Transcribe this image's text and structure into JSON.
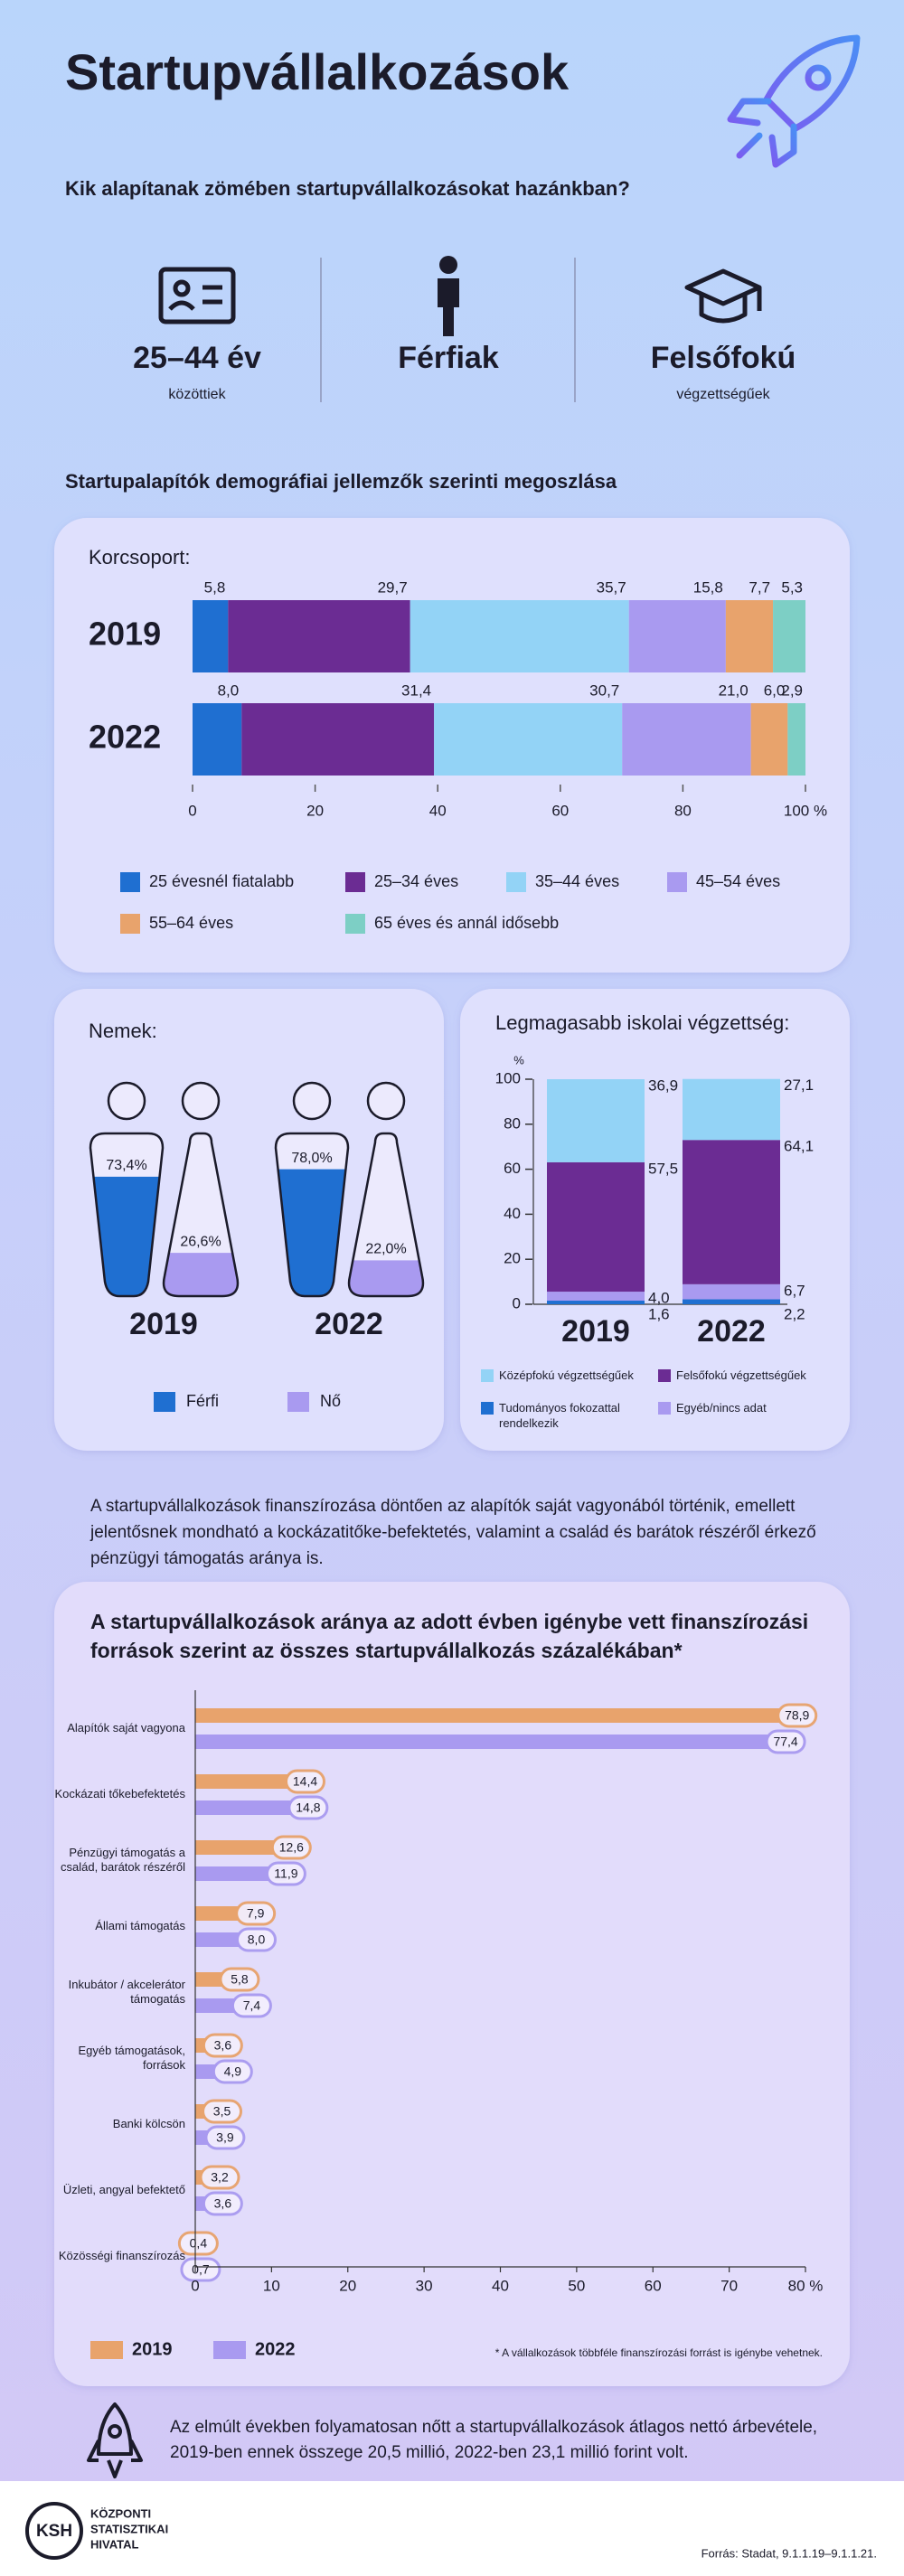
{
  "header": {
    "title": "Startupvállalkozások",
    "question": "Kik alapítanak zömében startupvállalkozásokat hazánkban?"
  },
  "profile": [
    {
      "main": "25–44 év",
      "sub": "közöttiek"
    },
    {
      "main": "Férfiak"
    },
    {
      "main": "Felsőfokú",
      "sub": "végzettségűek"
    }
  ],
  "section_title": "Startupalapítók demográfiai jellemzők szerinti megoszlása",
  "chart_data": [
    {
      "type": "bar",
      "orientation": "horizontal",
      "stacked": true,
      "title": "Korcsoport:",
      "categories": [
        "2019",
        "2022"
      ],
      "series": [
        {
          "name": "25 évesnél fiatalabb",
          "color": "#1f6fd1",
          "values": [
            5.8,
            8.0
          ],
          "value_labels": [
            "5,8",
            "8,0"
          ]
        },
        {
          "name": "25–34 éves",
          "color": "#6b2c93",
          "values": [
            29.7,
            31.4
          ],
          "value_labels": [
            "29,7",
            "31,4"
          ]
        },
        {
          "name": "35–44 éves",
          "color": "#93d3f6",
          "values": [
            35.7,
            30.7
          ],
          "value_labels": [
            "35,7",
            "30,7"
          ]
        },
        {
          "name": "45–54 éves",
          "color": "#a99af0",
          "values": [
            15.8,
            21.0
          ],
          "value_labels": [
            "15,8",
            "21,0"
          ]
        },
        {
          "name": "55–64 éves",
          "color": "#e8a36c",
          "values": [
            7.7,
            6.0
          ],
          "value_labels": [
            "7,7",
            "6,0"
          ]
        },
        {
          "name": "65 éves és annál idősebb",
          "color": "#7dcfc5",
          "values": [
            5.3,
            2.9
          ],
          "value_labels": [
            "5,3",
            "2,9"
          ]
        }
      ],
      "xlim": [
        0,
        100
      ],
      "xticks": [
        0,
        20,
        40,
        60,
        80,
        {
          "value": 100,
          "label": "100 %"
        }
      ]
    },
    {
      "type": "flask",
      "title": "Nemek:",
      "categories": [
        "2019",
        "2022"
      ],
      "series": [
        {
          "name": "Férfi",
          "color": "#1f6fd1",
          "values": [
            73.4,
            78.0
          ],
          "value_labels": [
            "73,4%",
            "78,0%"
          ]
        },
        {
          "name": "Nő",
          "color": "#a99af0",
          "values": [
            26.6,
            22.0
          ],
          "value_labels": [
            "26,6%",
            "22,0%"
          ]
        }
      ]
    },
    {
      "type": "bar",
      "orientation": "vertical",
      "stacked": true,
      "title": "Legmagasabb iskolai végzettség:",
      "ylabel": "%",
      "categories": [
        "2019",
        "2022"
      ],
      "series": [
        {
          "name": "Tudományos fokozattal rendelkezik",
          "color": "#1f6fd1",
          "values": [
            1.6,
            2.2
          ],
          "value_labels": [
            "1,6",
            "2,2"
          ]
        },
        {
          "name": "Egyéb/nincs adat",
          "color": "#a99af0",
          "values": [
            4.0,
            6.7
          ],
          "value_labels": [
            "4,0",
            "6,7"
          ]
        },
        {
          "name": "Felsőfokú végzettségűek",
          "color": "#6b2c93",
          "values": [
            57.5,
            64.1
          ],
          "value_labels": [
            "57,5",
            "64,1"
          ]
        },
        {
          "name": "Középfokú végzettségűek",
          "color": "#93d3f6",
          "values": [
            36.9,
            27.1
          ],
          "value_labels": [
            "36,9",
            "27,1"
          ]
        }
      ],
      "ylim": [
        0,
        100
      ],
      "yticks": [
        0,
        20,
        40,
        60,
        80,
        100
      ]
    },
    {
      "type": "bar",
      "orientation": "horizontal",
      "stacked": false,
      "title": "A startupvállalkozások aránya az adott évben igénybe vett finanszírozási források szerint az összes startupvállalkozás százalékában*",
      "categories": [
        "Alapítók saját vagyona",
        "Kockázati tőkebefektetés",
        "Pénzügyi támogatás a család, barátok részéről",
        "Állami támogatás",
        "Inkubátor / akcelerátor támogatás",
        "Egyéb támogatások, források",
        "Banki kölcsön",
        "Üzleti, angyal befektető",
        "Közösségi finanszírozás"
      ],
      "series": [
        {
          "name": "2019",
          "color": "#e8a36c",
          "values": [
            78.9,
            14.4,
            12.6,
            7.9,
            5.8,
            3.6,
            3.5,
            3.2,
            0.4
          ],
          "value_labels": [
            "78,9",
            "14,4",
            "12,6",
            "7,9",
            "5,8",
            "3,6",
            "3,5",
            "3,2",
            "0,4"
          ]
        },
        {
          "name": "2022",
          "color": "#a99af0",
          "values": [
            77.4,
            14.8,
            11.9,
            8.0,
            7.4,
            4.9,
            3.9,
            3.6,
            0.7
          ],
          "value_labels": [
            "77,4",
            "14,8",
            "11,9",
            "8,0",
            "7,4",
            "4,9",
            "3,9",
            "3,6",
            "0,7"
          ]
        }
      ],
      "xlim": [
        0,
        80
      ],
      "xticks": [
        0,
        10,
        20,
        30,
        40,
        50,
        60,
        70,
        {
          "value": 80,
          "label": "80 %"
        }
      ],
      "footnote": "* A vállalkozások többféle finanszírozási forrást is igénybe vehetnek."
    }
  ],
  "paragraph": "A startupvállalkozások finanszírozása döntően az alapítók saját vagyonából történik, emellett jelentősnek mondható a kockázatitőke-befektetés, valamint a család és barátok részéről érkező pénzügyi támogatás aránya is.",
  "closing": "Az elmúlt években folyamatosan nőtt a startupvállalkozások átlagos nettó árbevétele, 2019-ben ennek összege 20,5 millió, 2022-ben 23,1 millió forint volt.",
  "footer": {
    "logo": "KSH",
    "org": [
      "KÖZPONTI",
      "STATISZTIKAI",
      "HIVATAL"
    ],
    "source": "Forrás: Stadat, 9.1.1.19–9.1.1.21."
  }
}
